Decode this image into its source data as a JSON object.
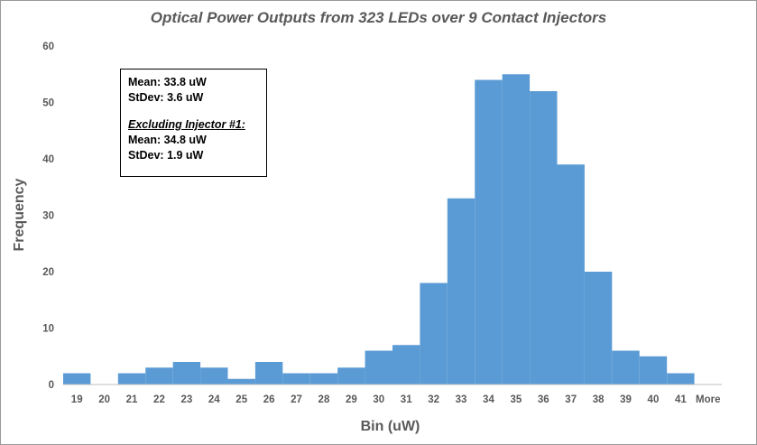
{
  "chart_data": {
    "type": "bar",
    "title": "Optical Power Outputs from 323 LEDs over 9 Contact Injectors",
    "xlabel": "Bin (uW)",
    "ylabel": "Frequency",
    "ylim": [
      0,
      60
    ],
    "yticks": [
      0,
      10,
      20,
      30,
      40,
      50,
      60
    ],
    "categories": [
      "19",
      "20",
      "21",
      "22",
      "23",
      "24",
      "25",
      "26",
      "27",
      "28",
      "29",
      "30",
      "31",
      "32",
      "33",
      "34",
      "35",
      "36",
      "37",
      "38",
      "39",
      "40",
      "41",
      "More"
    ],
    "values": [
      2,
      0,
      2,
      3,
      4,
      3,
      1,
      4,
      2,
      2,
      3,
      6,
      7,
      18,
      33,
      54,
      55,
      52,
      39,
      20,
      6,
      5,
      2,
      0
    ],
    "bar_color": "#5b9bd5",
    "grid": false,
    "annotation": {
      "mean_all": "Mean: 33.8 uW",
      "stdev_all": "StDev: 3.6 uW",
      "subset_heading": "Excluding Injector #1:",
      "mean_subset": "Mean: 34.8 uW",
      "stdev_subset": "StDev: 1.9 uW"
    }
  }
}
